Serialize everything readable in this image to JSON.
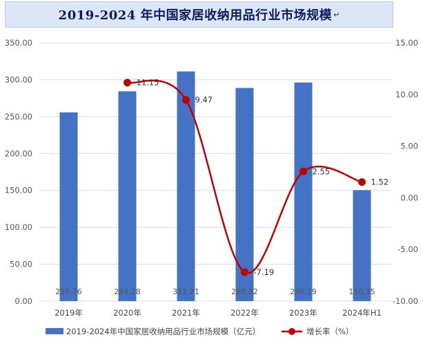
{
  "title": "2019-2024 年中国家居收纳用品行业市场规模",
  "title_return_mark": "↵",
  "chart_data": {
    "type": "bar+line",
    "categories": [
      "2019年",
      "2020年",
      "2021年",
      "2022年",
      "2023年",
      "2024年H1"
    ],
    "series": [
      {
        "name": "2019-2024年中国家居收纳用品行业市场规模（亿元）",
        "type": "bar",
        "axis": "left",
        "color": "#4472c4",
        "values": [
          255.76,
          284.28,
          311.21,
          288.82,
          296.19,
          150.35
        ],
        "labels": [
          "255.76",
          "284.28",
          "311.21",
          "288.82",
          "296.19",
          "150.35"
        ]
      },
      {
        "name": "增长率（%）",
        "type": "line",
        "axis": "right",
        "color": "#c00000",
        "values": [
          null,
          11.15,
          9.47,
          -7.19,
          2.55,
          1.52
        ],
        "labels": [
          "",
          "11.15",
          "9.47",
          "-7.19",
          "2.55",
          "1.52"
        ]
      }
    ],
    "y_left": {
      "min": 0,
      "max": 350,
      "ticks": [
        0,
        50,
        100,
        150,
        200,
        250,
        300,
        350
      ],
      "tick_labels": [
        "0.00",
        "50.00",
        "100.00",
        "150.00",
        "200.00",
        "250.00",
        "300.00",
        "350.00"
      ]
    },
    "y_right": {
      "min": -10,
      "max": 15,
      "ticks": [
        -10,
        -5,
        0,
        5,
        10,
        15
      ],
      "tick_labels": [
        "-10.00",
        "-5.00",
        "0.00",
        "5.00",
        "10.00",
        "15.00"
      ]
    },
    "grid": true,
    "legend_position": "bottom",
    "colors": {
      "bar": "#4472c4",
      "line": "#c00000",
      "grid": "#d9d9d9"
    }
  }
}
